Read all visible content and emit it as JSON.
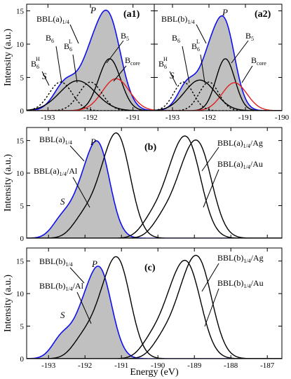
{
  "chart_data": [
    {
      "id": "a1",
      "type": "line",
      "panel_label": "(a1)",
      "ylabel": "Intensity (a.u.)",
      "xlim": [
        -193.5,
        -190.5
      ],
      "ylim": [
        0,
        16
      ],
      "y_ticks": [
        0,
        5,
        10,
        15
      ],
      "x_ticks": [
        -193,
        -192,
        -191
      ],
      "grid": false,
      "annotations": [
        "BBL(a)",
        "1/4",
        "P",
        "S",
        "B",
        "5",
        "B",
        "6",
        "B",
        "6",
        "L",
        "B",
        "6",
        "H",
        "B",
        "core"
      ],
      "series": [
        {
          "name": "BBL(a)1/4",
          "style": "filled-blue-outline",
          "color": "#1010ee",
          "peaks": [
            {
              "x0": -191.6,
              "h": 14.5,
              "w": 0.3
            },
            {
              "x0": -192.05,
              "h": 4.0,
              "w": 0.22
            },
            {
              "x0": -192.55,
              "h": 4.6,
              "w": 0.28
            }
          ]
        },
        {
          "name": "B5",
          "style": "solid",
          "color": "#000000",
          "peaks": [
            {
              "x0": -191.55,
              "h": 7.8,
              "w": 0.26
            }
          ]
        },
        {
          "name": "Bcore",
          "style": "solid",
          "color": "#e02020",
          "peaks": [
            {
              "x0": -191.4,
              "h": 4.8,
              "w": 0.32
            }
          ]
        },
        {
          "name": "B6",
          "style": "solid",
          "color": "#000000",
          "peaks": [
            {
              "x0": -192.3,
              "h": 4.5,
              "w": 0.42
            }
          ]
        },
        {
          "name": "B6L",
          "style": "dotted",
          "color": "#000000",
          "peaks": [
            {
              "x0": -192.0,
              "h": 4.3,
              "w": 0.27
            }
          ]
        },
        {
          "name": "B6H",
          "style": "dotted",
          "color": "#000000",
          "peaks": [
            {
              "x0": -192.7,
              "h": 4.3,
              "w": 0.27
            }
          ]
        }
      ]
    },
    {
      "id": "a2",
      "type": "line",
      "panel_label": "(a2)",
      "xlim": [
        -193.5,
        -190.0
      ],
      "ylim": [
        0,
        16
      ],
      "y_ticks": [
        0,
        5,
        10,
        15
      ],
      "x_ticks": [
        -193,
        -192,
        -191,
        -190
      ],
      "x_tick_labels": [
        "-193",
        "-192",
        "-191",
        "-190"
      ],
      "grid": false,
      "annotations": [
        "BBL(b)",
        "1/4",
        "P",
        "S",
        "B",
        "5",
        "B",
        "6",
        "B",
        "6",
        "L",
        "B",
        "6",
        "H",
        "B",
        "core"
      ],
      "series": [
        {
          "name": "BBL(b)1/4",
          "style": "filled-blue-outline",
          "color": "#1010ee",
          "peaks": [
            {
              "x0": -191.6,
              "h": 13.6,
              "w": 0.3
            },
            {
              "x0": -192.05,
              "h": 4.2,
              "w": 0.22
            },
            {
              "x0": -192.55,
              "h": 4.5,
              "w": 0.28
            }
          ]
        },
        {
          "name": "B5",
          "style": "solid",
          "color": "#000000",
          "peaks": [
            {
              "x0": -191.55,
              "h": 7.8,
              "w": 0.26
            }
          ]
        },
        {
          "name": "Bcore",
          "style": "solid",
          "color": "#e02020",
          "peaks": [
            {
              "x0": -191.3,
              "h": 4.2,
              "w": 0.34
            }
          ]
        },
        {
          "name": "B6",
          "style": "solid",
          "color": "#000000",
          "peaks": [
            {
              "x0": -192.25,
              "h": 4.6,
              "w": 0.42
            }
          ]
        },
        {
          "name": "B6L",
          "style": "dotted",
          "color": "#000000",
          "peaks": [
            {
              "x0": -192.0,
              "h": 4.3,
              "w": 0.27
            }
          ]
        },
        {
          "name": "B6H",
          "style": "dotted",
          "color": "#000000",
          "peaks": [
            {
              "x0": -192.7,
              "h": 4.3,
              "w": 0.27
            }
          ]
        }
      ]
    },
    {
      "id": "b",
      "type": "line",
      "panel_label": "(b)",
      "ylabel": "Intensity (a.u.)",
      "xlim": [
        -193.6,
        -186.6
      ],
      "ylim": [
        0,
        17
      ],
      "y_ticks": [
        0,
        5,
        10,
        15
      ],
      "x_ticks": [
        -193,
        -192,
        -191,
        -190,
        -189,
        -188,
        -187
      ],
      "show_x_tick_labels": false,
      "grid": false,
      "annotations": [
        "BBL(a)",
        "1/4",
        "P",
        "S",
        "BBL(a)",
        "1/4",
        "/Al",
        "BBL(a)",
        "1/4",
        "/Ag",
        "BBL(a)",
        "1/4",
        "/Au"
      ],
      "series": [
        {
          "name": "BBL(a)1/4",
          "style": "filled-blue-outline",
          "color": "#1010ee",
          "peaks": [
            {
              "x0": -191.65,
              "h": 14.4,
              "w": 0.33
            },
            {
              "x0": -192.15,
              "h": 3.5,
              "w": 0.25
            },
            {
              "x0": -192.6,
              "h": 3.2,
              "w": 0.28
            }
          ]
        },
        {
          "name": "BBL(a)1/4/Al",
          "style": "solid",
          "color": "#000000",
          "peaks": [
            {
              "x0": -191.1,
              "h": 15.3,
              "w": 0.35
            },
            {
              "x0": -191.6,
              "h": 3.6,
              "w": 0.28
            },
            {
              "x0": -192.05,
              "h": 3.0,
              "w": 0.3
            }
          ]
        },
        {
          "name": "BBL(a)1/4/Ag",
          "style": "solid",
          "color": "#000000",
          "peaks": [
            {
              "x0": -189.2,
              "h": 14.8,
              "w": 0.38
            },
            {
              "x0": -189.7,
              "h": 3.6,
              "w": 0.28
            },
            {
              "x0": -190.15,
              "h": 3.0,
              "w": 0.3
            }
          ]
        },
        {
          "name": "BBL(a)1/4/Au",
          "style": "solid",
          "color": "#000000",
          "peaks": [
            {
              "x0": -188.9,
              "h": 14.2,
              "w": 0.38
            },
            {
              "x0": -189.4,
              "h": 3.5,
              "w": 0.28
            },
            {
              "x0": -189.85,
              "h": 3.0,
              "w": 0.3
            }
          ]
        }
      ]
    },
    {
      "id": "c",
      "type": "line",
      "panel_label": "(c)",
      "ylabel": "Intensity (a.u.)",
      "xlabel": "Energy (eV)",
      "xlim": [
        -193.6,
        -186.6
      ],
      "ylim": [
        0,
        17
      ],
      "y_ticks": [
        0,
        5,
        10,
        15
      ],
      "x_ticks": [
        -193,
        -192,
        -191,
        -190,
        -189,
        -188,
        -187
      ],
      "grid": false,
      "annotations": [
        "BBL(b)",
        "1/4",
        "P",
        "S",
        "BBL(b)",
        "1/4",
        "/Al",
        "BBL(b)",
        "1/4",
        "/Ag",
        "BBL(b)",
        "1/4",
        "/Au"
      ],
      "series": [
        {
          "name": "BBL(b)1/4",
          "style": "filled-blue-outline",
          "color": "#1010ee",
          "peaks": [
            {
              "x0": -191.6,
              "h": 13.6,
              "w": 0.33
            },
            {
              "x0": -192.1,
              "h": 3.8,
              "w": 0.25
            },
            {
              "x0": -192.6,
              "h": 3.6,
              "w": 0.28
            }
          ]
        },
        {
          "name": "BBL(b)1/4/Al",
          "style": "solid",
          "color": "#000000",
          "peaks": [
            {
              "x0": -191.1,
              "h": 14.8,
              "w": 0.35
            },
            {
              "x0": -191.6,
              "h": 3.6,
              "w": 0.28
            },
            {
              "x0": -192.05,
              "h": 3.0,
              "w": 0.3
            }
          ]
        },
        {
          "name": "BBL(b)1/4/Ag",
          "style": "solid",
          "color": "#000000",
          "peaks": [
            {
              "x0": -189.2,
              "h": 14.2,
              "w": 0.38
            },
            {
              "x0": -189.7,
              "h": 3.6,
              "w": 0.28
            },
            {
              "x0": -190.15,
              "h": 3.0,
              "w": 0.3
            }
          ]
        },
        {
          "name": "BBL(b)1/4/Au",
          "style": "solid",
          "color": "#000000",
          "peaks": [
            {
              "x0": -188.9,
              "h": 15.0,
              "w": 0.38
            },
            {
              "x0": -189.4,
              "h": 3.5,
              "w": 0.28
            },
            {
              "x0": -189.85,
              "h": 3.0,
              "w": 0.3
            }
          ]
        }
      ]
    }
  ]
}
